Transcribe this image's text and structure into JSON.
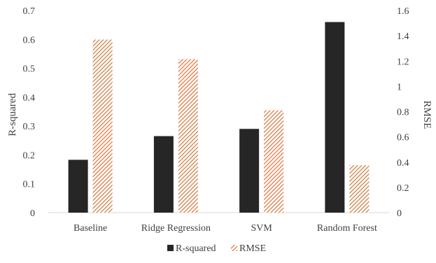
{
  "chart_data": {
    "type": "bar",
    "categories": [
      "Baseline",
      "Ridge Regression",
      "SVM",
      "Random Forest"
    ],
    "series": [
      {
        "name": "R-squared",
        "axis": "left",
        "values": [
          0.183,
          0.265,
          0.29,
          0.66
        ],
        "color": "#262626",
        "pattern": "solid"
      },
      {
        "name": "RMSE",
        "axis": "right",
        "values": [
          1.37,
          1.215,
          0.81,
          0.375
        ],
        "color": "#d8743a",
        "pattern": "diagonal-hatch"
      }
    ],
    "ylabel_left": "R-squared",
    "ylabel_right": "RMSE",
    "ylim_left": [
      0,
      0.7
    ],
    "ylim_right": [
      0,
      1.6
    ],
    "yticks_left": [
      "0",
      "0.1",
      "0.2",
      "0.3",
      "0.4",
      "0.5",
      "0.6",
      "0.7"
    ],
    "yticks_right": [
      "0",
      "0.2",
      "0.4",
      "0.6",
      "0.8",
      "1",
      "1.2",
      "1.4",
      "1.6"
    ],
    "grid": false,
    "legend_position": "bottom"
  }
}
